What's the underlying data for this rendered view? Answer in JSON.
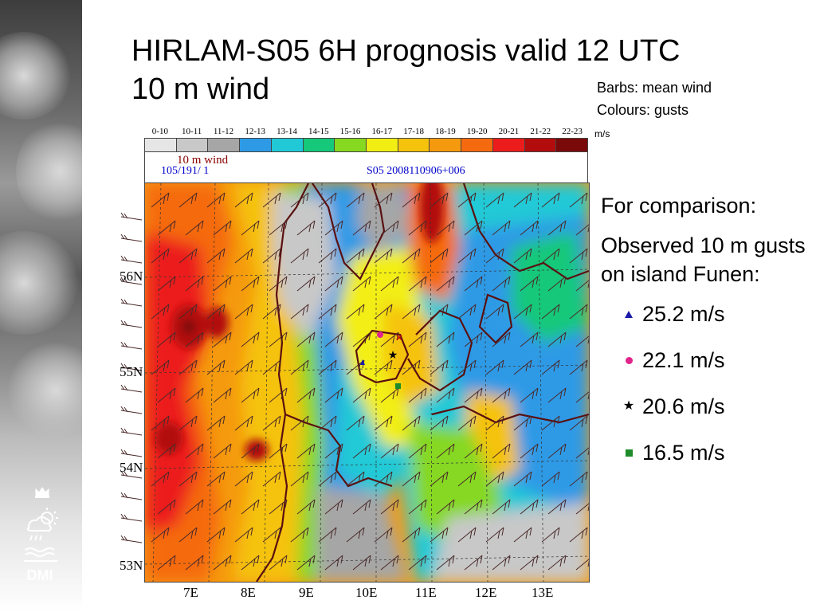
{
  "title": {
    "line1": "HIRLAM-S05 6H prognosis valid 12 UTC",
    "line2": "10 m wind"
  },
  "caption": {
    "barbs": "Barbs: mean wind",
    "colours": "Colours: gusts"
  },
  "colorscale": {
    "unit": "m/s",
    "bins": [
      {
        "label": "0-10",
        "color": "#e6e6e6"
      },
      {
        "label": "10-11",
        "color": "#c8c8c8"
      },
      {
        "label": "11-12",
        "color": "#a6a6a6"
      },
      {
        "label": "12-13",
        "color": "#2e9ae6"
      },
      {
        "label": "13-14",
        "color": "#21c9d6"
      },
      {
        "label": "14-15",
        "color": "#15c87a"
      },
      {
        "label": "15-16",
        "color": "#86d820"
      },
      {
        "label": "16-17",
        "color": "#f2ee14"
      },
      {
        "label": "17-18",
        "color": "#f5c20c"
      },
      {
        "label": "18-19",
        "color": "#f59a0e"
      },
      {
        "label": "19-20",
        "color": "#f56a0e"
      },
      {
        "label": "20-21",
        "color": "#ec1c1c"
      },
      {
        "label": "21-22",
        "color": "#b20c0c"
      },
      {
        "label": "22-23",
        "color": "#7a0a0a"
      }
    ]
  },
  "map_header": {
    "field": "10 m wind",
    "code": "105/191/  1",
    "run": "S05 2008110906+006"
  },
  "axes": {
    "latitudes": [
      "56N",
      "55N",
      "54N",
      "53N"
    ],
    "longitudes": [
      "7E",
      "8E",
      "9E",
      "10E",
      "11E",
      "12E",
      "13E"
    ]
  },
  "comparison": {
    "heading": "For comparison:",
    "subtitle": "Observed 10 m gusts on island Funen:",
    "observations": [
      {
        "value": "25.2 m/s",
        "marker": "triangle",
        "color": "#1a1aa8"
      },
      {
        "value": "22.1 m/s",
        "marker": "circle",
        "color": "#e0248c"
      },
      {
        "value": "20.6 m/s",
        "marker": "star",
        "color": "#000000"
      },
      {
        "value": "16.5 m/s",
        "marker": "square",
        "color": "#1e8c2a"
      }
    ]
  },
  "logo": {
    "text": "DMI"
  }
}
